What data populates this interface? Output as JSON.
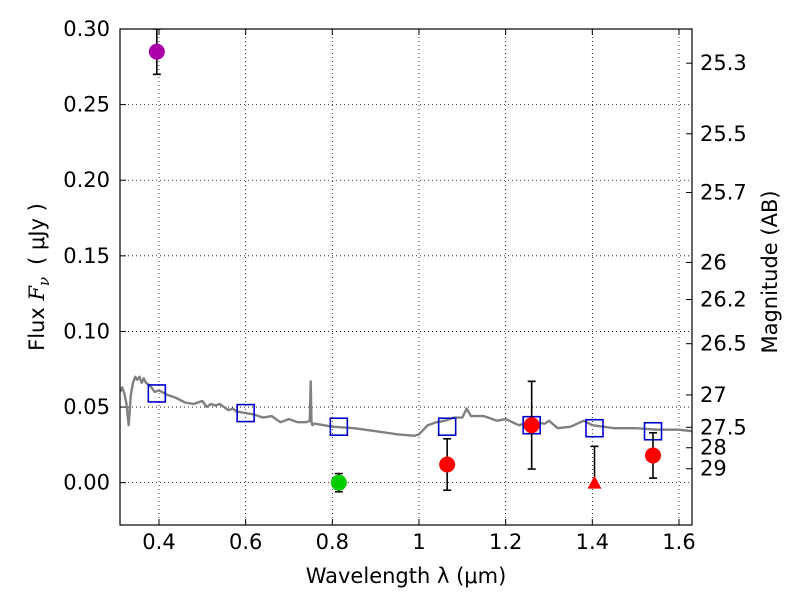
{
  "chart_data": {
    "type": "scatter",
    "xlabel": "Wavelength  λ (μm)",
    "ylabel": "Flux  F_ν  ( μJy )",
    "ylabel_parts": {
      "prefix": "Flux  ",
      "symbol": "F",
      "subscript": "ν",
      "unit": "(  μJy )"
    },
    "y2label": "Magnitude (AB)",
    "xlim": [
      0.31,
      1.63
    ],
    "ylim": [
      -0.028,
      0.3
    ],
    "grid": true,
    "x_ticks": [
      {
        "value": 0.4,
        "label": "0.4"
      },
      {
        "value": 0.6,
        "label": "0.6"
      },
      {
        "value": 0.8,
        "label": "0.8"
      },
      {
        "value": 1.0,
        "label": "1"
      },
      {
        "value": 1.2,
        "label": "1.2"
      },
      {
        "value": 1.4,
        "label": "1.4"
      },
      {
        "value": 1.6,
        "label": "1.6"
      }
    ],
    "y_ticks": [
      {
        "value": 0.0,
        "label": "0.00"
      },
      {
        "value": 0.05,
        "label": "0.05"
      },
      {
        "value": 0.1,
        "label": "0.10"
      },
      {
        "value": 0.15,
        "label": "0.15"
      },
      {
        "value": 0.2,
        "label": "0.20"
      },
      {
        "value": 0.25,
        "label": "0.25"
      },
      {
        "value": 0.3,
        "label": "0.30"
      }
    ],
    "y2_ticks": [
      {
        "label": "25.3",
        "flux": 0.2774
      },
      {
        "label": "25.5",
        "flux": 0.2307
      },
      {
        "label": "25.7",
        "flux": 0.1919
      },
      {
        "label": "26",
        "flux": 0.1456
      },
      {
        "label": "26.2",
        "flux": 0.1211
      },
      {
        "label": "26.5",
        "flux": 0.0919
      },
      {
        "label": "27",
        "flux": 0.058
      },
      {
        "label": "27.5",
        "flux": 0.0366
      },
      {
        "label": "28",
        "flux": 0.0231
      },
      {
        "label": "29",
        "flux": 0.0092
      }
    ],
    "series": [
      {
        "name": "model-spectrum",
        "kind": "line",
        "color": "#808080",
        "x": [
          0.31,
          0.315,
          0.32,
          0.325,
          0.33,
          0.335,
          0.34,
          0.345,
          0.35,
          0.355,
          0.36,
          0.365,
          0.37,
          0.38,
          0.39,
          0.4,
          0.42,
          0.44,
          0.46,
          0.48,
          0.5,
          0.51,
          0.52,
          0.53,
          0.54,
          0.55,
          0.56,
          0.57,
          0.58,
          0.6,
          0.62,
          0.64,
          0.66,
          0.68,
          0.7,
          0.72,
          0.74,
          0.748,
          0.75,
          0.752,
          0.754,
          0.756,
          0.76,
          0.78,
          0.8,
          0.85,
          0.9,
          0.95,
          0.99,
          1.0,
          1.02,
          1.04,
          1.06,
          1.08,
          1.1,
          1.11,
          1.12,
          1.15,
          1.18,
          1.2,
          1.23,
          1.26,
          1.29,
          1.3,
          1.32,
          1.35,
          1.38,
          1.4,
          1.45,
          1.5,
          1.55,
          1.6,
          1.63
        ],
        "y": [
          0.06,
          0.063,
          0.059,
          0.052,
          0.038,
          0.058,
          0.066,
          0.07,
          0.068,
          0.07,
          0.066,
          0.069,
          0.066,
          0.064,
          0.06,
          0.061,
          0.058,
          0.056,
          0.053,
          0.052,
          0.054,
          0.05,
          0.052,
          0.051,
          0.052,
          0.05,
          0.048,
          0.049,
          0.047,
          0.046,
          0.045,
          0.043,
          0.044,
          0.04,
          0.042,
          0.04,
          0.04,
          0.041,
          0.067,
          0.04,
          0.038,
          0.039,
          0.039,
          0.038,
          0.037,
          0.036,
          0.034,
          0.032,
          0.031,
          0.032,
          0.038,
          0.04,
          0.041,
          0.043,
          0.043,
          0.049,
          0.044,
          0.044,
          0.041,
          0.042,
          0.038,
          0.04,
          0.039,
          0.041,
          0.036,
          0.037,
          0.041,
          0.038,
          0.036,
          0.036,
          0.035,
          0.035,
          0.034
        ]
      },
      {
        "name": "model-photometry",
        "kind": "open-square",
        "color": "#0000cc",
        "points": [
          {
            "x": 0.395,
            "y": 0.059
          },
          {
            "x": 0.6,
            "y": 0.046
          },
          {
            "x": 0.815,
            "y": 0.037
          },
          {
            "x": 1.065,
            "y": 0.037
          },
          {
            "x": 1.26,
            "y": 0.038
          },
          {
            "x": 1.405,
            "y": 0.036
          },
          {
            "x": 1.54,
            "y": 0.034
          }
        ]
      },
      {
        "name": "observed-detections",
        "kind": "circle",
        "points": [
          {
            "x": 0.395,
            "y": 0.285,
            "yerr": 0.015,
            "color": "#aa00aa"
          },
          {
            "x": 0.815,
            "y": 0.0,
            "yerr": 0.006,
            "color": "#00cc00"
          },
          {
            "x": 1.065,
            "y": 0.012,
            "yerr": 0.017,
            "color": "#ff0000"
          },
          {
            "x": 1.26,
            "y": 0.038,
            "yerr": 0.029,
            "color": "#ff0000"
          },
          {
            "x": 1.54,
            "y": 0.018,
            "yerr": 0.015,
            "color": "#ff0000"
          }
        ]
      },
      {
        "name": "observed-upper-limit",
        "kind": "triangle",
        "points": [
          {
            "x": 1.405,
            "y": 0.0,
            "yerr_up": 0.024,
            "color": "#ff0000"
          }
        ]
      }
    ]
  }
}
